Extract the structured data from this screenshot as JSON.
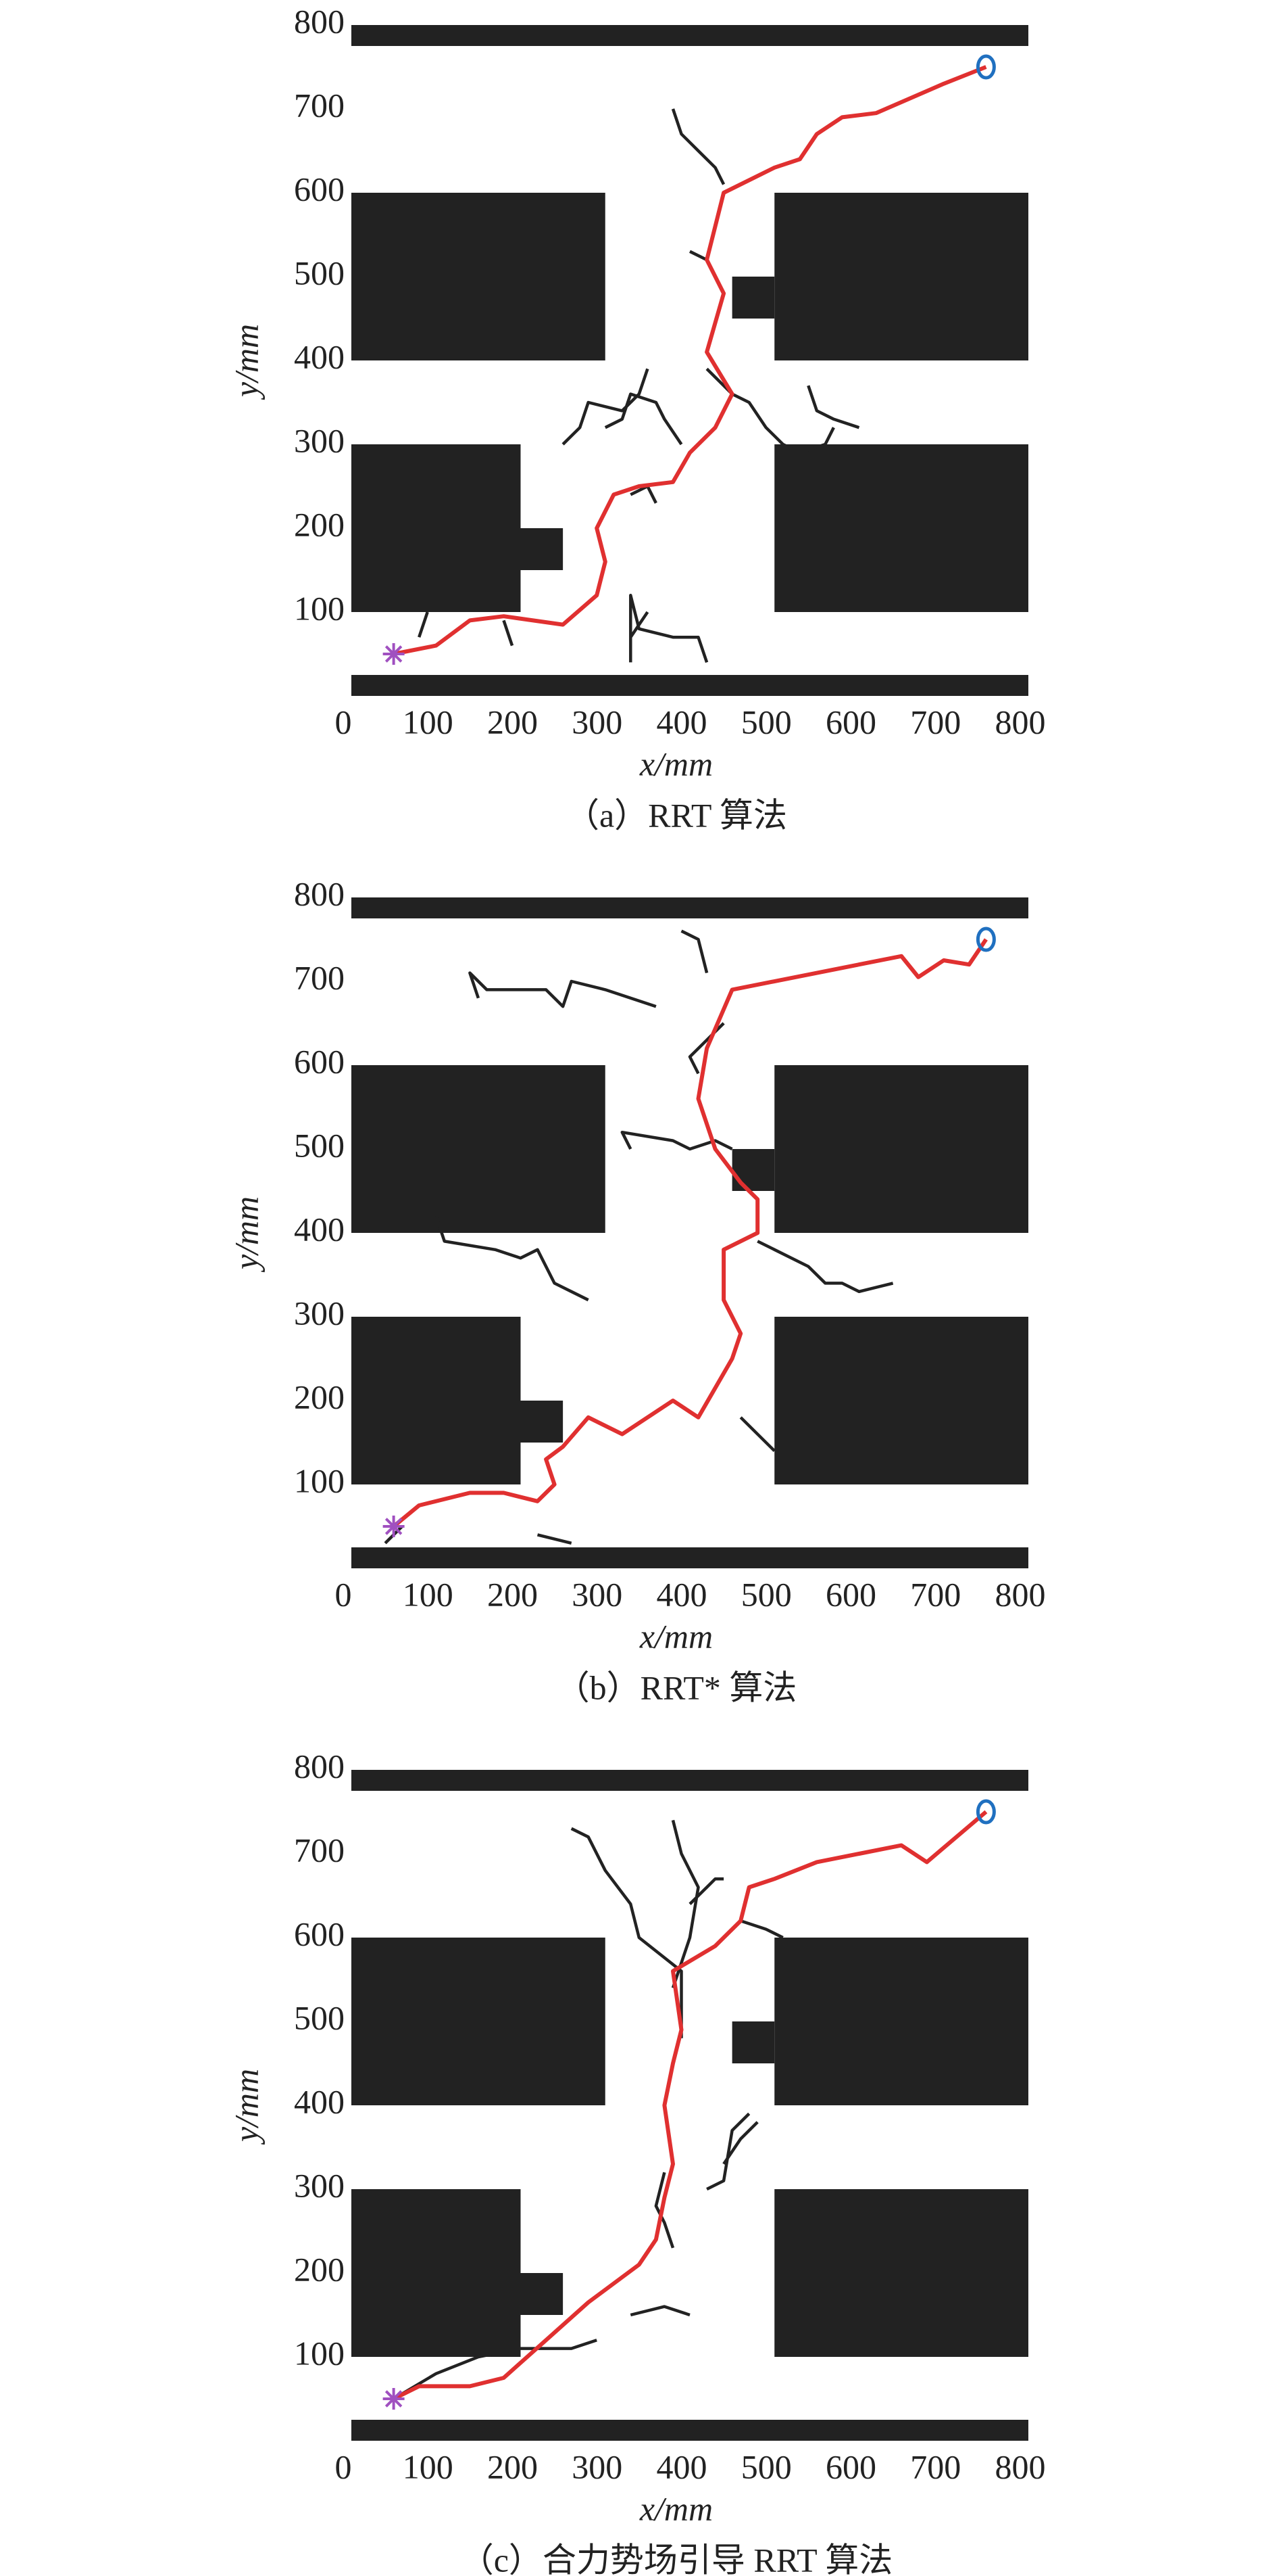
{
  "chart_data": [
    {
      "type": "line",
      "caption": "（a）RRT 算法",
      "xlabel": "x/mm",
      "ylabel": "y/mm",
      "xlim": [
        0,
        800
      ],
      "ylim": [
        0,
        800
      ],
      "xticks": [
        0,
        100,
        200,
        300,
        400,
        500,
        600,
        700,
        800
      ],
      "yticks": [
        100,
        200,
        300,
        400,
        500,
        600,
        700,
        800
      ],
      "obstacles": [
        {
          "x": [
            0,
            800
          ],
          "y": [
            775,
            800
          ]
        },
        {
          "x": [
            0,
            800
          ],
          "y": [
            0,
            25
          ]
        },
        {
          "x": [
            0,
            300
          ],
          "y": [
            400,
            600
          ]
        },
        {
          "x": [
            500,
            800
          ],
          "y": [
            400,
            600
          ]
        },
        {
          "x": [
            450,
            500
          ],
          "y": [
            450,
            500
          ]
        },
        {
          "x": [
            0,
            200
          ],
          "y": [
            100,
            300
          ]
        },
        {
          "x": [
            200,
            250
          ],
          "y": [
            150,
            200
          ]
        },
        {
          "x": [
            500,
            800
          ],
          "y": [
            100,
            300
          ]
        }
      ],
      "series": [
        {
          "color": "#222222",
          "x": [
            250,
            270,
            280,
            320,
            340,
            350,
            null,
            300,
            320,
            330,
            360,
            370,
            390,
            null,
            330,
            350,
            360,
            null,
            420,
            440,
            450,
            470,
            490,
            510,
            530,
            560,
            570,
            null,
            540,
            550,
            570,
            600,
            null,
            330,
            330,
            340,
            380,
            410,
            420,
            null,
            400,
            420,
            null,
            380,
            390,
            410,
            430,
            440,
            null,
            330,
            350,
            null,
            180,
            190,
            null,
            90,
            80
          ],
          "y": [
            300,
            320,
            350,
            340,
            360,
            390,
            null,
            320,
            330,
            360,
            350,
            330,
            300,
            null,
            240,
            250,
            230,
            null,
            390,
            370,
            360,
            350,
            320,
            300,
            290,
            300,
            320,
            null,
            370,
            340,
            330,
            320,
            null,
            40,
            120,
            80,
            70,
            70,
            40,
            null,
            530,
            520,
            null,
            700,
            670,
            650,
            630,
            610,
            null,
            70,
            100,
            null,
            90,
            60,
            null,
            100,
            70
          ],
          "marker": "none"
        },
        {
          "color": "#e03030",
          "x": [
            50,
            100,
            140,
            180,
            250,
            290,
            300,
            290,
            310,
            340,
            380,
            400,
            430,
            450,
            420,
            440,
            420,
            440,
            500,
            530,
            550,
            580,
            620,
            700,
            750
          ],
          "y": [
            50,
            60,
            90,
            95,
            85,
            120,
            160,
            200,
            240,
            250,
            255,
            290,
            320,
            360,
            410,
            480,
            520,
            600,
            630,
            640,
            670,
            690,
            695,
            730,
            750
          ],
          "marker": "none"
        },
        {
          "color": "#a050c0",
          "x": [
            50
          ],
          "y": [
            50
          ],
          "marker": "asterisk"
        },
        {
          "color": "#2070c0",
          "x": [
            750
          ],
          "y": [
            750
          ],
          "marker": "circle"
        }
      ]
    },
    {
      "type": "line",
      "caption": "（b）RRT* 算法",
      "xlabel": "x/mm",
      "ylabel": "y/mm",
      "xlim": [
        0,
        800
      ],
      "ylim": [
        0,
        800
      ],
      "xticks": [
        0,
        100,
        200,
        300,
        400,
        500,
        600,
        700,
        800
      ],
      "yticks": [
        100,
        200,
        300,
        400,
        500,
        600,
        700,
        800
      ],
      "obstacles": [
        {
          "x": [
            0,
            800
          ],
          "y": [
            775,
            800
          ]
        },
        {
          "x": [
            0,
            800
          ],
          "y": [
            0,
            25
          ]
        },
        {
          "x": [
            0,
            300
          ],
          "y": [
            400,
            600
          ]
        },
        {
          "x": [
            500,
            800
          ],
          "y": [
            400,
            600
          ]
        },
        {
          "x": [
            450,
            500
          ],
          "y": [
            450,
            500
          ]
        },
        {
          "x": [
            0,
            200
          ],
          "y": [
            100,
            300
          ]
        },
        {
          "x": [
            200,
            250
          ],
          "y": [
            150,
            200
          ]
        },
        {
          "x": [
            500,
            800
          ],
          "y": [
            100,
            300
          ]
        }
      ],
      "series": [
        {
          "color": "#222222",
          "x": [
            150,
            140,
            160,
            230,
            250,
            260,
            300,
            360,
            null,
            100,
            110,
            170,
            200,
            220,
            240,
            260,
            280,
            null,
            330,
            320,
            380,
            400,
            430,
            450,
            null,
            480,
            500,
            540,
            560,
            580,
            600,
            640,
            null,
            390,
            410,
            420,
            null,
            440,
            420,
            400,
            410,
            null,
            460,
            500,
            null,
            60,
            40,
            null,
            220,
            260
          ],
          "y": [
            680,
            710,
            690,
            690,
            670,
            700,
            690,
            670,
            null,
            420,
            390,
            380,
            370,
            380,
            340,
            330,
            320,
            null,
            500,
            520,
            510,
            500,
            510,
            500,
            null,
            390,
            380,
            360,
            340,
            340,
            330,
            340,
            null,
            760,
            750,
            710,
            null,
            650,
            630,
            610,
            590,
            null,
            180,
            140,
            null,
            50,
            30,
            null,
            40,
            30
          ],
          "marker": "none"
        },
        {
          "color": "#e03030",
          "x": [
            50,
            80,
            140,
            180,
            220,
            240,
            230,
            250,
            280,
            320,
            380,
            410,
            450,
            460,
            440,
            440,
            480,
            480,
            460,
            430,
            410,
            420,
            450,
            650,
            670,
            700,
            730,
            750
          ],
          "y": [
            50,
            75,
            90,
            90,
            80,
            100,
            130,
            145,
            180,
            160,
            200,
            180,
            250,
            280,
            320,
            380,
            400,
            440,
            460,
            500,
            560,
            620,
            690,
            730,
            705,
            725,
            720,
            750
          ],
          "marker": "none"
        },
        {
          "color": "#a050c0",
          "x": [
            50
          ],
          "y": [
            50
          ],
          "marker": "asterisk"
        },
        {
          "color": "#2070c0",
          "x": [
            750
          ],
          "y": [
            750
          ],
          "marker": "circle"
        }
      ]
    },
    {
      "type": "line",
      "caption": "（c）合力势场引导 RRT 算法",
      "xlabel": "x/mm",
      "ylabel": "y/mm",
      "xlim": [
        0,
        800
      ],
      "ylim": [
        0,
        800
      ],
      "xticks": [
        0,
        100,
        200,
        300,
        400,
        500,
        600,
        700,
        800
      ],
      "yticks": [
        100,
        200,
        300,
        400,
        500,
        600,
        700,
        800
      ],
      "obstacles": [
        {
          "x": [
            0,
            800
          ],
          "y": [
            775,
            800
          ]
        },
        {
          "x": [
            0,
            800
          ],
          "y": [
            0,
            25
          ]
        },
        {
          "x": [
            0,
            300
          ],
          "y": [
            400,
            600
          ]
        },
        {
          "x": [
            500,
            800
          ],
          "y": [
            400,
            600
          ]
        },
        {
          "x": [
            450,
            500
          ],
          "y": [
            450,
            500
          ]
        },
        {
          "x": [
            0,
            200
          ],
          "y": [
            100,
            300
          ]
        },
        {
          "x": [
            200,
            250
          ],
          "y": [
            150,
            200
          ]
        },
        {
          "x": [
            500,
            800
          ],
          "y": [
            100,
            300
          ]
        }
      ],
      "series": [
        {
          "color": "#222222",
          "x": [
            390,
            390,
            340,
            330,
            300,
            280,
            260,
            null,
            380,
            400,
            410,
            390,
            380,
            null,
            400,
            420,
            430,
            440,
            null,
            460,
            490,
            510,
            null,
            370,
            360,
            370,
            380,
            null,
            420,
            440,
            450,
            470,
            null,
            440,
            460,
            480,
            null,
            50,
            100,
            150,
            200,
            260,
            290,
            null,
            330,
            370,
            400
          ],
          "y": [
            480,
            560,
            600,
            640,
            680,
            720,
            730,
            null,
            540,
            600,
            660,
            700,
            740,
            null,
            640,
            660,
            670,
            670,
            null,
            620,
            610,
            600,
            null,
            320,
            280,
            260,
            230,
            null,
            300,
            310,
            370,
            390,
            null,
            330,
            360,
            380,
            null,
            50,
            80,
            100,
            110,
            110,
            120,
            null,
            150,
            160,
            150
          ],
          "marker": "none"
        },
        {
          "color": "#e03030",
          "x": [
            50,
            80,
            140,
            180,
            230,
            280,
            340,
            360,
            370,
            380,
            370,
            380,
            390,
            380,
            430,
            460,
            470,
            500,
            550,
            600,
            650,
            680,
            750
          ],
          "y": [
            50,
            65,
            65,
            75,
            120,
            165,
            210,
            240,
            290,
            330,
            400,
            450,
            490,
            560,
            590,
            620,
            660,
            670,
            690,
            700,
            710,
            690,
            750
          ],
          "marker": "none"
        },
        {
          "color": "#a050c0",
          "x": [
            50
          ],
          "y": [
            50
          ],
          "marker": "asterisk"
        },
        {
          "color": "#2070c0",
          "x": [
            750
          ],
          "y": [
            750
          ],
          "marker": "circle"
        }
      ]
    }
  ]
}
